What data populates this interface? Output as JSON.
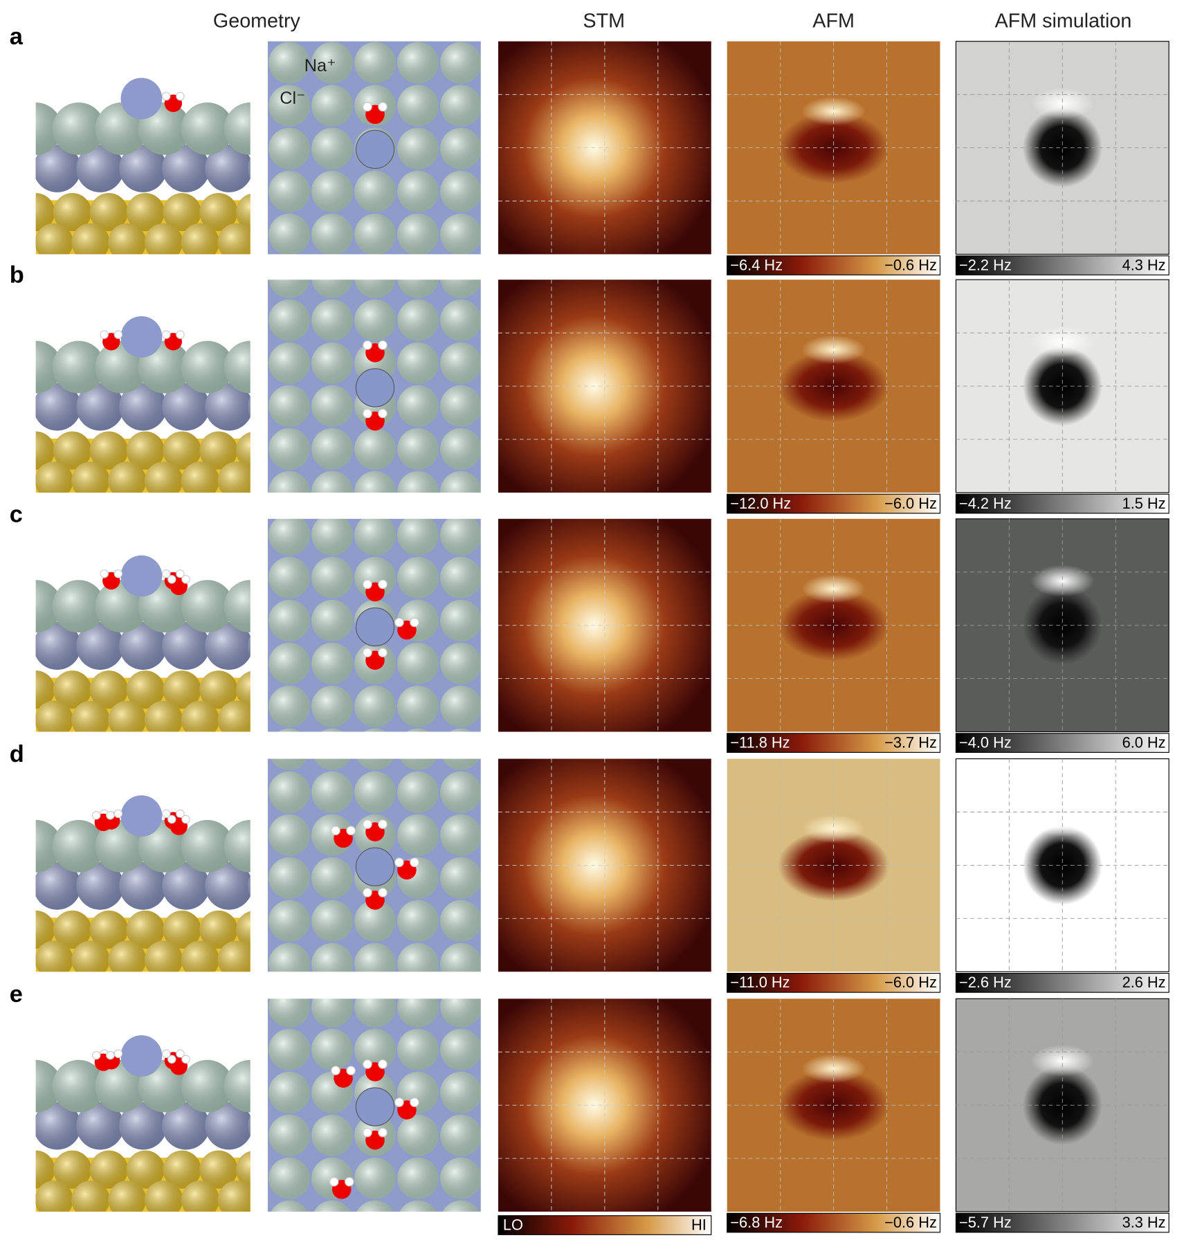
{
  "header": {
    "geometry": "Geometry",
    "stm": "STM",
    "afm": "AFM",
    "simulation": "AFM simulation"
  },
  "annotations": {
    "sodium": "Na⁺",
    "chloride": "Cl⁻"
  },
  "stm_scale": {
    "low": "LO",
    "high": "HI"
  },
  "rows": [
    {
      "label": "a",
      "afm_scale": {
        "min": "−6.4 Hz",
        "max": "−0.6 Hz"
      },
      "sim_scale": {
        "min": "−2.2 Hz",
        "max": "4.3 Hz"
      }
    },
    {
      "label": "b",
      "afm_scale": {
        "min": "−12.0 Hz",
        "max": "−6.0 Hz"
      },
      "sim_scale": {
        "min": "−4.2 Hz",
        "max": "1.5 Hz"
      }
    },
    {
      "label": "c",
      "afm_scale": {
        "min": "−11.8 Hz",
        "max": "−3.7 Hz"
      },
      "sim_scale": {
        "min": "−4.0 Hz",
        "max": "6.0 Hz"
      }
    },
    {
      "label": "d",
      "afm_scale": {
        "min": "−11.0 Hz",
        "max": "−6.0 Hz"
      },
      "sim_scale": {
        "min": "−2.6 Hz",
        "max": "2.6 Hz"
      }
    },
    {
      "label": "e",
      "afm_scale": {
        "min": "−6.8 Hz",
        "max": "−0.6 Hz"
      },
      "sim_scale": {
        "min": "−5.7 Hz",
        "max": "3.3 Hz"
      }
    }
  ]
}
